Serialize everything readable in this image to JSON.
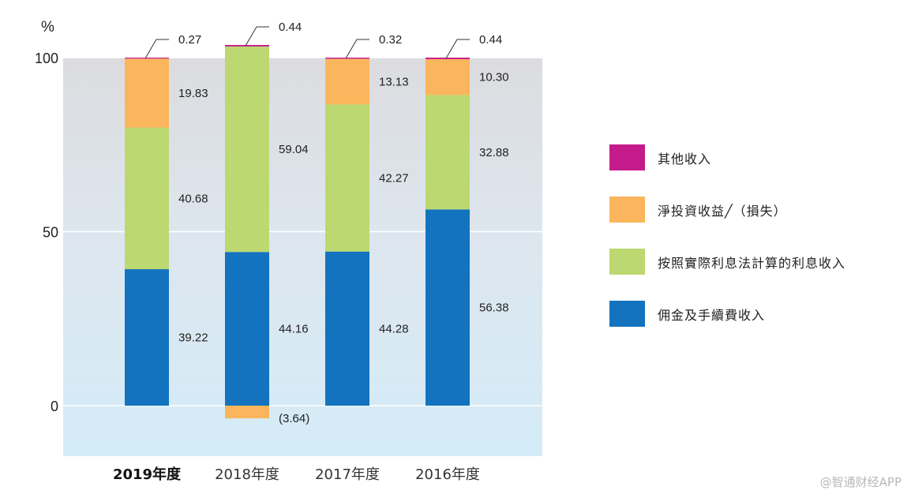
{
  "chart_data": {
    "type": "bar",
    "stacked": true,
    "unit_label": "%",
    "ylim": [
      -15,
      100
    ],
    "yticks": [
      100,
      50,
      0
    ],
    "categories": [
      "2019年度",
      "2018年度",
      "2017年度",
      "2016年度"
    ],
    "series": [
      {
        "name": "佣金及手續費收入",
        "color": "#1473be",
        "values": [
          39.22,
          44.16,
          44.28,
          56.38
        ],
        "labels": [
          "39.22",
          "44.16",
          "44.28",
          "56.38"
        ]
      },
      {
        "name": "按照實際利息法計算的利息收入",
        "color": "#bcd871",
        "values": [
          40.68,
          59.04,
          42.27,
          32.88
        ],
        "labels": [
          "40.68",
          "59.04",
          "42.27",
          "32.88"
        ]
      },
      {
        "name": "淨投資收益╱（損失）",
        "color": "#fbb55c",
        "values": [
          19.83,
          -3.64,
          13.13,
          10.3
        ],
        "labels": [
          "19.83",
          "(3.64)",
          "13.13",
          "10.30"
        ]
      },
      {
        "name": "其他收入",
        "color": "#c51b8a",
        "values": [
          0.27,
          0.44,
          0.32,
          0.44
        ],
        "labels": [
          "0.27",
          "0.44",
          "0.32",
          "0.44"
        ]
      }
    ],
    "legend": [
      {
        "name": "其他收入",
        "color": "#c51b8a"
      },
      {
        "name": "淨投資收益╱（損失）",
        "color": "#fbb55c"
      },
      {
        "name": "按照實際利息法計算的利息收入",
        "color": "#bcd871"
      },
      {
        "name": "佣金及手續費收入",
        "color": "#1473be"
      }
    ],
    "legend_position": "right"
  },
  "watermark": "@智通财经APP"
}
